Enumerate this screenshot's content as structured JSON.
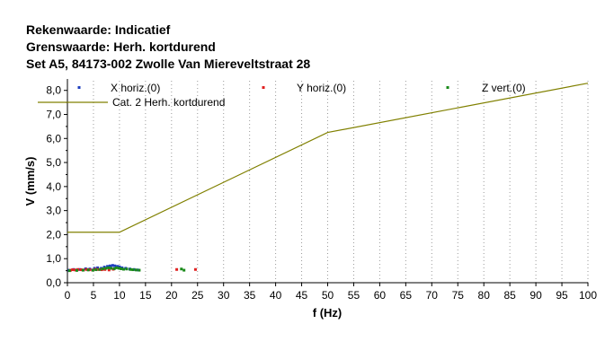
{
  "titles": {
    "line1": "Rekenwaarde: Indicatief",
    "line2": "Grenswaarde: Herh. kortdurend",
    "line3": "Set A5, 84173-002 Zwolle Van Miereveltstraat 28"
  },
  "chart_data": {
    "type": "scatter",
    "xlabel": "f (Hz)",
    "ylabel": "V (mm/s)",
    "xlim": [
      0,
      100
    ],
    "ylim": [
      0,
      8.4
    ],
    "xticks": [
      0,
      5,
      10,
      15,
      20,
      25,
      30,
      35,
      40,
      45,
      50,
      55,
      60,
      65,
      70,
      75,
      80,
      85,
      90,
      95,
      100
    ],
    "xtick_labels": [
      "0",
      "5",
      "10",
      "15",
      "20",
      "25",
      "30",
      "35",
      "40",
      "45",
      "50",
      "55",
      "60",
      "65",
      "70",
      "75",
      "80",
      "85",
      "90",
      "95",
      "100"
    ],
    "yticks": [
      0,
      1,
      2,
      3,
      4,
      5,
      6,
      7,
      8
    ],
    "ytick_labels": [
      "0,0",
      "1,0",
      "2,0",
      "3,0",
      "4,0",
      "5,0",
      "6,0",
      "7,0",
      "8,0"
    ],
    "grid": {
      "vertical": true,
      "horizontal": false,
      "style": "dotted"
    },
    "legend": {
      "placement": "top"
    },
    "series": [
      {
        "name": "X horiz.(0)",
        "color": "#1f3fbf",
        "points": [
          [
            0.3,
            0.52
          ],
          [
            1.2,
            0.55
          ],
          [
            2.4,
            0.55
          ],
          [
            3.5,
            0.58
          ],
          [
            4.3,
            0.57
          ],
          [
            5.2,
            0.6
          ],
          [
            5.8,
            0.62
          ],
          [
            6.5,
            0.6
          ],
          [
            7.1,
            0.65
          ],
          [
            7.7,
            0.68
          ],
          [
            8.2,
            0.7
          ],
          [
            8.7,
            0.72
          ],
          [
            9.1,
            0.7
          ],
          [
            9.6,
            0.68
          ],
          [
            10.0,
            0.66
          ],
          [
            10.5,
            0.62
          ],
          [
            11.2,
            0.6
          ],
          [
            12.0,
            0.57
          ],
          [
            12.8,
            0.55
          ],
          [
            13.5,
            0.53
          ]
        ]
      },
      {
        "name": "Y horiz.(0)",
        "color": "#e02020",
        "points": [
          [
            0.6,
            0.52
          ],
          [
            1.0,
            0.54
          ],
          [
            1.5,
            0.53
          ],
          [
            2.0,
            0.55
          ],
          [
            2.6,
            0.54
          ],
          [
            3.1,
            0.53
          ],
          [
            3.7,
            0.55
          ],
          [
            4.2,
            0.54
          ],
          [
            4.8,
            0.53
          ],
          [
            5.4,
            0.56
          ],
          [
            6.0,
            0.55
          ],
          [
            6.6,
            0.54
          ],
          [
            7.2,
            0.55
          ],
          [
            8.0,
            0.53
          ],
          [
            8.8,
            0.56
          ],
          [
            21.0,
            0.55
          ],
          [
            24.6,
            0.55
          ]
        ]
      },
      {
        "name": "Z vert.(0)",
        "color": "#1a8a1a",
        "points": [
          [
            0.4,
            0.5
          ],
          [
            1.8,
            0.51
          ],
          [
            3.0,
            0.52
          ],
          [
            4.0,
            0.53
          ],
          [
            4.9,
            0.52
          ],
          [
            5.5,
            0.54
          ],
          [
            6.2,
            0.55
          ],
          [
            6.8,
            0.58
          ],
          [
            7.4,
            0.6
          ],
          [
            7.9,
            0.62
          ],
          [
            8.4,
            0.6
          ],
          [
            9.0,
            0.58
          ],
          [
            9.4,
            0.62
          ],
          [
            9.9,
            0.6
          ],
          [
            10.3,
            0.58
          ],
          [
            10.8,
            0.56
          ],
          [
            11.4,
            0.57
          ],
          [
            12.1,
            0.55
          ],
          [
            12.6,
            0.54
          ],
          [
            13.2,
            0.53
          ],
          [
            13.8,
            0.52
          ],
          [
            21.9,
            0.57
          ],
          [
            22.4,
            0.52
          ]
        ]
      }
    ],
    "limit_line": {
      "name": "Cat. 2 Herh. kortdurend",
      "color": "#808000",
      "x": [
        0,
        10,
        50,
        100
      ],
      "y": [
        2.1,
        2.1,
        6.25,
        8.3
      ]
    }
  }
}
